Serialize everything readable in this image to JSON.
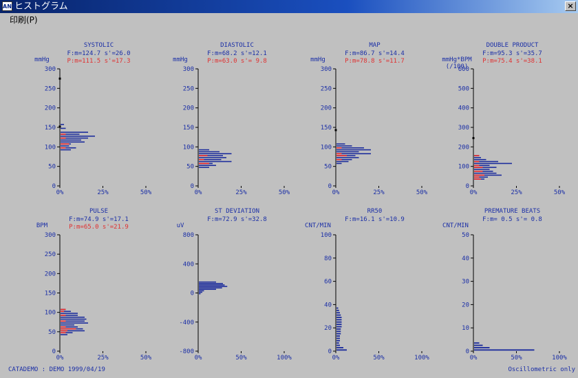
{
  "window": {
    "title": "ヒストグラム",
    "app_icon_text": "AND",
    "close_label": "×"
  },
  "menu": {
    "print_label": "印刷(P)"
  },
  "status": {
    "left_text": "CATADEMO : DEMO   1999/04/19",
    "right_text": "Oscillometric only"
  },
  "colors": {
    "bar_f": "#1c2c9c",
    "bar_p": "#ee2a2a",
    "text_blue": "#1a2ea6",
    "text_red": "#e03030",
    "axis": "#000000"
  },
  "chart_data": [
    {
      "type": "bar",
      "orientation": "horizontal",
      "title": "SYSTOLIC",
      "unit_label": [
        "mmHg"
      ],
      "stat_f": "F:m=124.7 s'=26.0",
      "stat_p": "P:m=111.5 s'=17.3",
      "ylim": [
        0,
        300
      ],
      "y_ticks": [
        0,
        50,
        100,
        150,
        200,
        250,
        300
      ],
      "xlim": [
        0,
        50
      ],
      "x_ticks": [
        "0%",
        "25%",
        "50%"
      ],
      "bin_width": 5,
      "series": [
        {
          "name": "F",
          "bins": [
            [
              155,
              2
            ],
            [
              145,
              3
            ],
            [
              135,
              16
            ],
            [
              130,
              11
            ],
            [
              125,
              20
            ],
            [
              120,
              16
            ],
            [
              115,
              12
            ],
            [
              110,
              14
            ],
            [
              105,
              6
            ],
            [
              100,
              5
            ],
            [
              95,
              9
            ],
            [
              90,
              6
            ]
          ]
        },
        {
          "name": "P",
          "bins": [
            [
              130,
              3
            ],
            [
              120,
              3
            ],
            [
              105,
              5
            ],
            [
              95,
              3
            ]
          ]
        }
      ],
      "markers": [
        275,
        152
      ]
    },
    {
      "type": "bar",
      "orientation": "horizontal",
      "title": "DIASTOLIC",
      "unit_label": [
        "mmHg"
      ],
      "stat_f": "F:m=68.2 s'=12.1",
      "stat_p": "P:m=63.0 s'= 9.8",
      "ylim": [
        0,
        300
      ],
      "y_ticks": [
        0,
        50,
        100,
        150,
        200,
        250,
        300
      ],
      "xlim": [
        0,
        50
      ],
      "x_ticks": [
        "0%",
        "25%",
        "50%"
      ],
      "bin_width": 5,
      "series": [
        {
          "name": "F",
          "bins": [
            [
              90,
              6
            ],
            [
              85,
              12
            ],
            [
              80,
              19
            ],
            [
              75,
              14
            ],
            [
              70,
              16
            ],
            [
              65,
              13
            ],
            [
              60,
              19
            ],
            [
              55,
              8
            ],
            [
              50,
              10
            ],
            [
              45,
              6
            ]
          ]
        },
        {
          "name": "P",
          "bins": [
            [
              75,
              5
            ],
            [
              65,
              3
            ],
            [
              55,
              6
            ]
          ]
        }
      ],
      "markers": []
    },
    {
      "type": "bar",
      "orientation": "horizontal",
      "title": "MAP",
      "unit_label": [
        "mmHg"
      ],
      "stat_f": "F:m=86.7 s'=14.4",
      "stat_p": "P:m=78.8 s'=11.7",
      "ylim": [
        0,
        300
      ],
      "y_ticks": [
        0,
        50,
        100,
        150,
        200,
        250,
        300
      ],
      "xlim": [
        0,
        50
      ],
      "x_ticks": [
        "0%",
        "25%",
        "50%"
      ],
      "bin_width": 5,
      "series": [
        {
          "name": "F",
          "bins": [
            [
              105,
              5
            ],
            [
              100,
              9
            ],
            [
              95,
              16
            ],
            [
              90,
              20
            ],
            [
              85,
              13
            ],
            [
              80,
              20
            ],
            [
              75,
              11
            ],
            [
              70,
              13
            ],
            [
              65,
              9
            ],
            [
              60,
              7
            ],
            [
              55,
              3
            ]
          ]
        },
        {
          "name": "P",
          "bins": [
            [
              95,
              3
            ],
            [
              80,
              3
            ],
            [
              75,
              6
            ],
            [
              65,
              3
            ]
          ]
        }
      ],
      "markers": [
        143
      ]
    },
    {
      "type": "bar",
      "orientation": "horizontal",
      "title": "DOUBLE PRODUCT",
      "unit_label": [
        "mmHg*BPM",
        "(/100)"
      ],
      "stat_f": "F:m=95.3 s'=35.7",
      "stat_p": "P:m=75.4 s'=38.1",
      "ylim": [
        0,
        600
      ],
      "y_ticks": [
        0,
        100,
        200,
        300,
        400,
        500,
        600
      ],
      "xlim": [
        0,
        50
      ],
      "x_ticks": [
        "0%",
        "25%",
        "50%"
      ],
      "bin_width": 10,
      "series": [
        {
          "name": "F",
          "bins": [
            [
              150,
              3
            ],
            [
              140,
              4
            ],
            [
              130,
              7
            ],
            [
              120,
              14
            ],
            [
              110,
              22
            ],
            [
              100,
              9
            ],
            [
              90,
              13
            ],
            [
              80,
              9
            ],
            [
              70,
              11
            ],
            [
              60,
              13
            ],
            [
              50,
              16
            ],
            [
              40,
              8
            ],
            [
              30,
              6
            ]
          ]
        },
        {
          "name": "P",
          "bins": [
            [
              150,
              3
            ],
            [
              120,
              3
            ],
            [
              100,
              3
            ],
            [
              90,
              5
            ],
            [
              70,
              5
            ],
            [
              50,
              6
            ],
            [
              40,
              3
            ],
            [
              30,
              4
            ]
          ]
        }
      ],
      "markers": [
        245
      ]
    },
    {
      "type": "bar",
      "orientation": "horizontal",
      "title": "PULSE",
      "unit_label": [
        "BPM"
      ],
      "stat_f": "F:m=74.9 s'=17.1",
      "stat_p": "P:m=65.0 s'=21.9",
      "ylim": [
        0,
        300
      ],
      "y_ticks": [
        0,
        50,
        100,
        150,
        200,
        250,
        300
      ],
      "xlim": [
        0,
        50
      ],
      "x_ticks": [
        "0%",
        "25%",
        "50%"
      ],
      "bin_width": 5,
      "series": [
        {
          "name": "F",
          "bins": [
            [
              105,
              3
            ],
            [
              100,
              6
            ],
            [
              95,
              10
            ],
            [
              90,
              10
            ],
            [
              85,
              14
            ],
            [
              80,
              15
            ],
            [
              75,
              14
            ],
            [
              70,
              16
            ],
            [
              65,
              8
            ],
            [
              60,
              10
            ],
            [
              55,
              13
            ],
            [
              50,
              14
            ],
            [
              45,
              7
            ],
            [
              40,
              4
            ]
          ]
        },
        {
          "name": "P",
          "bins": [
            [
              105,
              3
            ],
            [
              100,
              2
            ],
            [
              90,
              3
            ],
            [
              75,
              3
            ],
            [
              60,
              3
            ],
            [
              55,
              9
            ],
            [
              50,
              4
            ],
            [
              45,
              3
            ]
          ]
        }
      ],
      "markers": []
    },
    {
      "type": "bar",
      "orientation": "horizontal",
      "title": "ST DEVIATION",
      "unit_label": [
        "uV"
      ],
      "stat_f": "F:m=72.9 s'=32.8",
      "stat_p": "",
      "ylim": [
        -800,
        800
      ],
      "y_ticks": [
        -800,
        -400,
        0,
        400,
        800
      ],
      "xlim": [
        0,
        100
      ],
      "x_ticks": [
        "0%",
        "50%",
        "100%"
      ],
      "bin_width": 20,
      "series": [
        {
          "name": "F",
          "bins": [
            [
              140,
              20
            ],
            [
              120,
              28
            ],
            [
              100,
              30
            ],
            [
              80,
              33
            ],
            [
              60,
              27
            ],
            [
              40,
              20
            ],
            [
              20,
              6
            ],
            [
              0,
              4
            ],
            [
              -20,
              2
            ]
          ]
        }
      ],
      "markers": []
    },
    {
      "type": "bar",
      "orientation": "horizontal",
      "title": "RR50",
      "unit_label": [
        "CNT/MIN"
      ],
      "stat_f": "F:m=16.1 s'=10.9",
      "stat_p": "",
      "ylim": [
        0,
        100
      ],
      "y_ticks": [
        0,
        20,
        40,
        60,
        80,
        100
      ],
      "xlim": [
        0,
        100
      ],
      "x_ticks": [
        "0%",
        "50%",
        "100%"
      ],
      "bin_width": 2,
      "series": [
        {
          "name": "F",
          "bins": [
            [
              36,
              2
            ],
            [
              34,
              3
            ],
            [
              32,
              4
            ],
            [
              30,
              5
            ],
            [
              28,
              6
            ],
            [
              26,
              6
            ],
            [
              24,
              6
            ],
            [
              22,
              6
            ],
            [
              20,
              6
            ],
            [
              18,
              5
            ],
            [
              16,
              5
            ],
            [
              14,
              5
            ],
            [
              12,
              4
            ],
            [
              10,
              4
            ],
            [
              8,
              4
            ],
            [
              6,
              3
            ],
            [
              4,
              4
            ],
            [
              2,
              8
            ],
            [
              0,
              12
            ]
          ]
        }
      ],
      "markers": []
    },
    {
      "type": "bar",
      "orientation": "horizontal",
      "title": "PREMATURE BEATS",
      "unit_label": [
        "CNT/MIN"
      ],
      "stat_f": "F:m= 0.5 s'= 0.8",
      "stat_p": "",
      "ylim": [
        0,
        50
      ],
      "y_ticks": [
        0,
        10,
        20,
        30,
        40,
        50
      ],
      "xlim": [
        0,
        100
      ],
      "x_ticks": [
        "0%",
        "50%",
        "100%"
      ],
      "bin_width": 1,
      "series": [
        {
          "name": "F",
          "bins": [
            [
              3,
              6
            ],
            [
              2,
              10
            ],
            [
              1,
              18
            ],
            [
              0,
              70
            ]
          ]
        }
      ],
      "markers": []
    }
  ]
}
